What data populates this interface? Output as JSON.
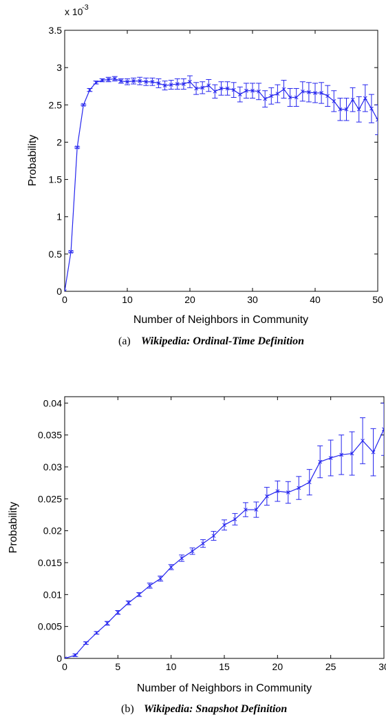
{
  "chart_data": [
    {
      "type": "line",
      "caption_label": "(a)",
      "caption_text": "Wikipedia: Ordinal-Time Definition",
      "xlabel": "Number of Neighbors in Community",
      "ylabel": "Probability",
      "exponent_base": "x 10",
      "exponent_power": "-3",
      "xlim": [
        0,
        50
      ],
      "ylim": [
        0,
        3.5
      ],
      "xticks": [
        0,
        10,
        20,
        30,
        40,
        50
      ],
      "xtick_labels": [
        "0",
        "10",
        "20",
        "30",
        "40",
        "50"
      ],
      "yticks": [
        0,
        0.5,
        1,
        1.5,
        2,
        2.5,
        3,
        3.5
      ],
      "ytick_labels": [
        "0",
        "0.5",
        "1",
        "1.5",
        "2",
        "2.5",
        "3",
        "3.5"
      ],
      "color": "#2424ee",
      "series": [
        {
          "x": [
            0,
            1,
            2,
            3,
            4,
            5,
            6,
            7,
            8,
            9,
            10,
            11,
            12,
            13,
            14,
            15,
            16,
            17,
            18,
            19,
            20,
            21,
            22,
            23,
            24,
            25,
            26,
            27,
            28,
            29,
            30,
            31,
            32,
            33,
            34,
            35,
            36,
            37,
            38,
            39,
            40,
            41,
            42,
            43,
            44,
            45,
            46,
            47,
            48,
            49,
            50
          ],
          "values": [
            0.0,
            0.53,
            1.93,
            2.5,
            2.7,
            2.8,
            2.83,
            2.84,
            2.85,
            2.82,
            2.81,
            2.82,
            2.82,
            2.81,
            2.81,
            2.79,
            2.76,
            2.77,
            2.78,
            2.78,
            2.81,
            2.72,
            2.73,
            2.76,
            2.68,
            2.72,
            2.72,
            2.7,
            2.64,
            2.69,
            2.69,
            2.68,
            2.58,
            2.62,
            2.65,
            2.71,
            2.6,
            2.6,
            2.68,
            2.67,
            2.66,
            2.66,
            2.62,
            2.55,
            2.44,
            2.44,
            2.57,
            2.44,
            2.59,
            2.45,
            2.3
          ],
          "errors": [
            0.0,
            0.01,
            0.01,
            0.01,
            0.02,
            0.02,
            0.02,
            0.03,
            0.03,
            0.03,
            0.04,
            0.04,
            0.05,
            0.05,
            0.05,
            0.06,
            0.06,
            0.06,
            0.07,
            0.07,
            0.08,
            0.08,
            0.08,
            0.08,
            0.09,
            0.09,
            0.09,
            0.1,
            0.1,
            0.1,
            0.1,
            0.11,
            0.11,
            0.11,
            0.12,
            0.12,
            0.12,
            0.12,
            0.13,
            0.13,
            0.13,
            0.14,
            0.14,
            0.14,
            0.15,
            0.15,
            0.16,
            0.17,
            0.18,
            0.19,
            0.2
          ]
        }
      ]
    },
    {
      "type": "line",
      "caption_label": "(b)",
      "caption_text": "Wikipedia: Snapshot Definition",
      "xlabel": "Number of Neighbors in Community",
      "ylabel": "Probability",
      "xlim": [
        0,
        30
      ],
      "ylim": [
        0,
        0.041
      ],
      "xticks": [
        0,
        5,
        10,
        15,
        20,
        25,
        30
      ],
      "xtick_labels": [
        "0",
        "5",
        "10",
        "15",
        "20",
        "25",
        "30"
      ],
      "yticks": [
        0,
        0.005,
        0.01,
        0.015,
        0.02,
        0.025,
        0.03,
        0.035,
        0.04
      ],
      "ytick_labels": [
        "0",
        "0.005",
        "0.01",
        "0.015",
        "0.02",
        "0.025",
        "0.03",
        "0.035",
        "0.04"
      ],
      "color": "#2424ee",
      "series": [
        {
          "x": [
            0,
            1,
            2,
            3,
            4,
            5,
            6,
            7,
            8,
            9,
            10,
            11,
            12,
            13,
            14,
            15,
            16,
            17,
            18,
            19,
            20,
            21,
            22,
            23,
            24,
            25,
            26,
            27,
            28,
            29,
            30
          ],
          "values": [
            0.0,
            0.0005,
            0.0024,
            0.004,
            0.0055,
            0.0072,
            0.0087,
            0.01,
            0.0114,
            0.0125,
            0.0143,
            0.0157,
            0.0168,
            0.018,
            0.0192,
            0.0209,
            0.0218,
            0.0233,
            0.0233,
            0.0254,
            0.0262,
            0.026,
            0.0267,
            0.0276,
            0.0308,
            0.0314,
            0.0319,
            0.0321,
            0.0341,
            0.0323,
            0.0359
          ],
          "errors": [
            0.0,
            0.0002,
            0.0002,
            0.0002,
            0.0003,
            0.0003,
            0.0003,
            0.0003,
            0.0004,
            0.0004,
            0.0004,
            0.0005,
            0.0005,
            0.0006,
            0.0007,
            0.0008,
            0.0009,
            0.0011,
            0.0012,
            0.0014,
            0.0016,
            0.0017,
            0.0018,
            0.002,
            0.0025,
            0.0028,
            0.0031,
            0.0034,
            0.0036,
            0.0037,
            0.0041
          ]
        }
      ]
    }
  ]
}
